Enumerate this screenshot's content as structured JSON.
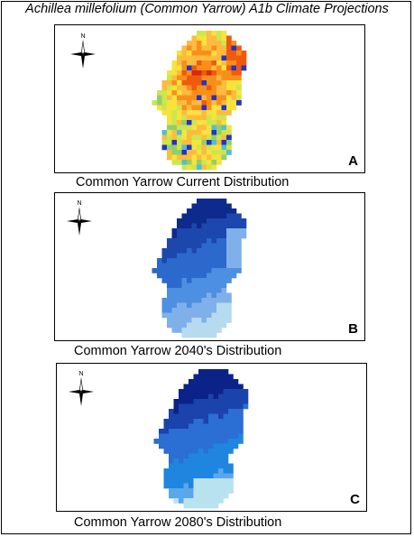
{
  "figure": {
    "title": "Achillea millefolium (Common Yarrow) A1b Climate Projections"
  },
  "panels": [
    {
      "id": "A",
      "letter": "A",
      "caption": "Common Yarrow Current Distribution",
      "north_label": "N",
      "style": "heat",
      "palette": [
        "#d7261b",
        "#f05a0c",
        "#f98f1b",
        "#fdbb40",
        "#f6e33c",
        "#cde64d",
        "#8fd06c",
        "#4fbfd6",
        "#2a7fd8",
        "#2233c8"
      ]
    },
    {
      "id": "B",
      "letter": "B",
      "caption": "Common Yarrow 2040's Distribution",
      "north_label": "N",
      "style": "blue",
      "palette": [
        "#0e2a8c",
        "#1c47ad",
        "#2c69cc",
        "#4d8fe0",
        "#7fb0ea",
        "#b6dbef"
      ]
    },
    {
      "id": "C",
      "letter": "C",
      "caption": "Common Yarrow 2080's Distribution",
      "north_label": "N",
      "style": "blue",
      "palette": [
        "#0b2388",
        "#1a43ab",
        "#2b6ed4",
        "#1f86e0",
        "#5aa8ea",
        "#b8e2ee"
      ]
    }
  ]
}
